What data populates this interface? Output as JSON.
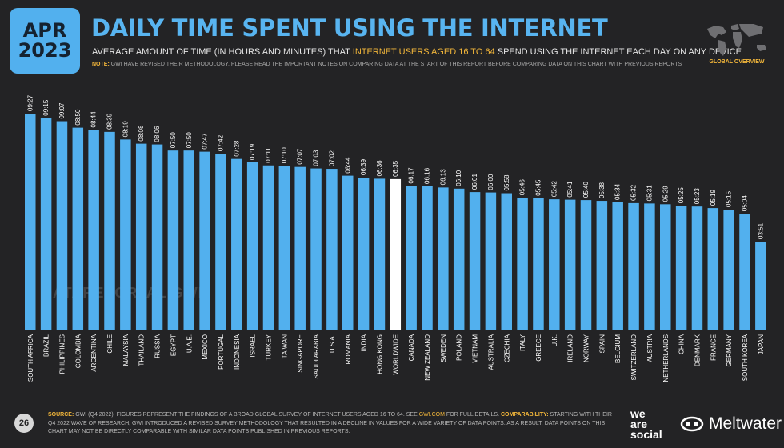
{
  "header": {
    "month": "APR",
    "year": "2023",
    "title": "DAILY TIME SPENT USING THE INTERNET",
    "subtitle_pre": "AVERAGE AMOUNT OF TIME (IN HOURS AND MINUTES) THAT ",
    "subtitle_highlight": "INTERNET USERS AGED 16 TO 64",
    "subtitle_post": " SPEND USING THE INTERNET EACH DAY ON ANY DEVICE",
    "note_label": "NOTE:",
    "note_text": " GWI HAVE REVISED THEIR METHODOLOGY. PLEASE READ THE IMPORTANT NOTES ON COMPARING DATA AT THE START OF THIS REPORT BEFORE COMPARING DATA ON THIS CHART WITH PREVIOUS REPORTS",
    "overview_label": "GLOBAL OVERVIEW",
    "map_icon": "world-map-icon"
  },
  "watermark": "DATAREPORTAL  GWI.",
  "footer": {
    "page": "26",
    "source_label": "SOURCE:",
    "source_text": " GWI (Q4 2022). FIGURES REPRESENT THE FINDINGS OF A BROAD GLOBAL SURVEY OF INTERNET USERS AGED 16 TO 64. SEE ",
    "source_link": "GWI.COM",
    "source_post": " FOR FULL DETAILS. ",
    "comparability_label": "COMPARABILITY:",
    "comparability_text": " STARTING WITH THEIR Q4 2022 WAVE OF RESEARCH, GWI INTRODUCED A REVISED SURVEY METHODOLOGY THAT RESULTED IN A DECLINE IN VALUES FOR A WIDE VARIETY OF DATA POINTS. AS A RESULT, DATA POINTS ON THIS CHART MAY NOT BE DIRECTLY COMPARABLE WITH SIMILAR DATA POINTS PUBLISHED IN PREVIOUS REPORTS."
  },
  "brands": {
    "was_line1": "we",
    "was_line2": "are",
    "was_line3": "social",
    "meltwater": "Meltwater"
  },
  "colors": {
    "background": "#232325",
    "bar": "#52b0ee",
    "highlight_bar": "#ffffff",
    "accent": "#f2b63a"
  },
  "chart_data": {
    "type": "bar",
    "highlight": "WORLDWIDE",
    "ylim": [
      "00:00",
      "09:27"
    ],
    "categories": [
      "SOUTH AFRICA",
      "BRAZIL",
      "PHILIPPINES",
      "COLOMBIA",
      "ARGENTINA",
      "CHILE",
      "MALAYSIA",
      "THAILAND",
      "RUSSIA",
      "EGYPT",
      "U.A.E.",
      "MEXICO",
      "PORTUGAL",
      "INDONESIA",
      "ISRAEL",
      "TURKEY",
      "TAIWAN",
      "SINGAPORE",
      "SAUDI ARABIA",
      "U.S.A.",
      "ROMANIA",
      "INDIA",
      "HONG KONG",
      "WORLDWIDE",
      "CANADA",
      "NEW ZEALAND",
      "SWEDEN",
      "POLAND",
      "VIETNAM",
      "AUSTRALIA",
      "CZECHIA",
      "ITALY",
      "GREECE",
      "U.K.",
      "IRELAND",
      "NORWAY",
      "SPAIN",
      "BELGIUM",
      "SWITZERLAND",
      "AUSTRIA",
      "NETHERLANDS",
      "CHINA",
      "DENMARK",
      "FRANCE",
      "GERMANY",
      "SOUTH KOREA",
      "JAPAN"
    ],
    "values": [
      "09:27",
      "09:15",
      "09:07",
      "08:50",
      "08:44",
      "08:39",
      "08:19",
      "08:08",
      "08:06",
      "07:50",
      "07:50",
      "07:47",
      "07:42",
      "07:28",
      "07:19",
      "07:11",
      "07:10",
      "07:07",
      "07:03",
      "07:02",
      "06:44",
      "06:39",
      "06:36",
      "06:35",
      "06:17",
      "06:16",
      "06:13",
      "06:10",
      "06:01",
      "06:00",
      "05:58",
      "05:46",
      "05:45",
      "05:42",
      "05:41",
      "05:40",
      "05:38",
      "05:34",
      "05:32",
      "05:31",
      "05:29",
      "05:25",
      "05:23",
      "05:19",
      "05:15",
      "05:04",
      "03:51"
    ]
  }
}
